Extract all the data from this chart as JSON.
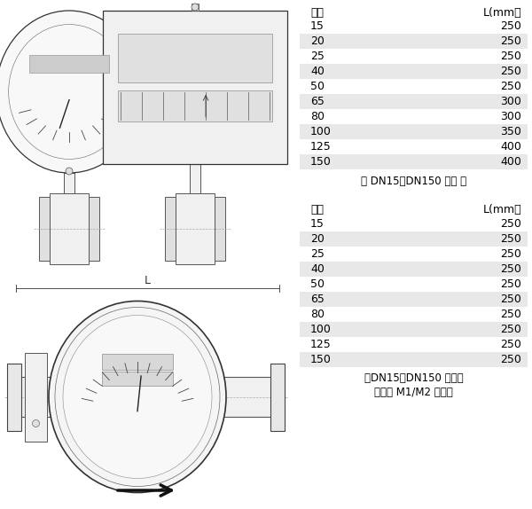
{
  "bg_color": "#ffffff",
  "table1_header_col1": "口径",
  "table1_header_col2": "L(mm）",
  "table1_rows": [
    [
      "15",
      "250"
    ],
    [
      "20",
      "250"
    ],
    [
      "25",
      "250"
    ],
    [
      "40",
      "250"
    ],
    [
      "50",
      "250"
    ],
    [
      "65",
      "300"
    ],
    [
      "80",
      "300"
    ],
    [
      "100",
      "350"
    ],
    [
      "125",
      "400"
    ],
    [
      "150",
      "400"
    ]
  ],
  "table1_note": "（ DN15～DN150 气体 ）",
  "table2_header_col1": "口径",
  "table2_header_col2": "L(mm）",
  "table2_rows": [
    [
      "15",
      "250"
    ],
    [
      "20",
      "250"
    ],
    [
      "25",
      "250"
    ],
    [
      "40",
      "250"
    ],
    [
      "50",
      "250"
    ],
    [
      "65",
      "250"
    ],
    [
      "80",
      "250"
    ],
    [
      "100",
      "250"
    ],
    [
      "125",
      "250"
    ],
    [
      "150",
      "250"
    ]
  ],
  "table2_note1": "（DN15～DN150 液体）",
  "table2_note2": "（可选 M1/M2 表头）",
  "row_bg_gray": "#e8e8e8",
  "row_bg_white": "#ffffff",
  "text_color": "#000000",
  "font_size": 9,
  "dim_label": "L",
  "arrow_label": "→"
}
